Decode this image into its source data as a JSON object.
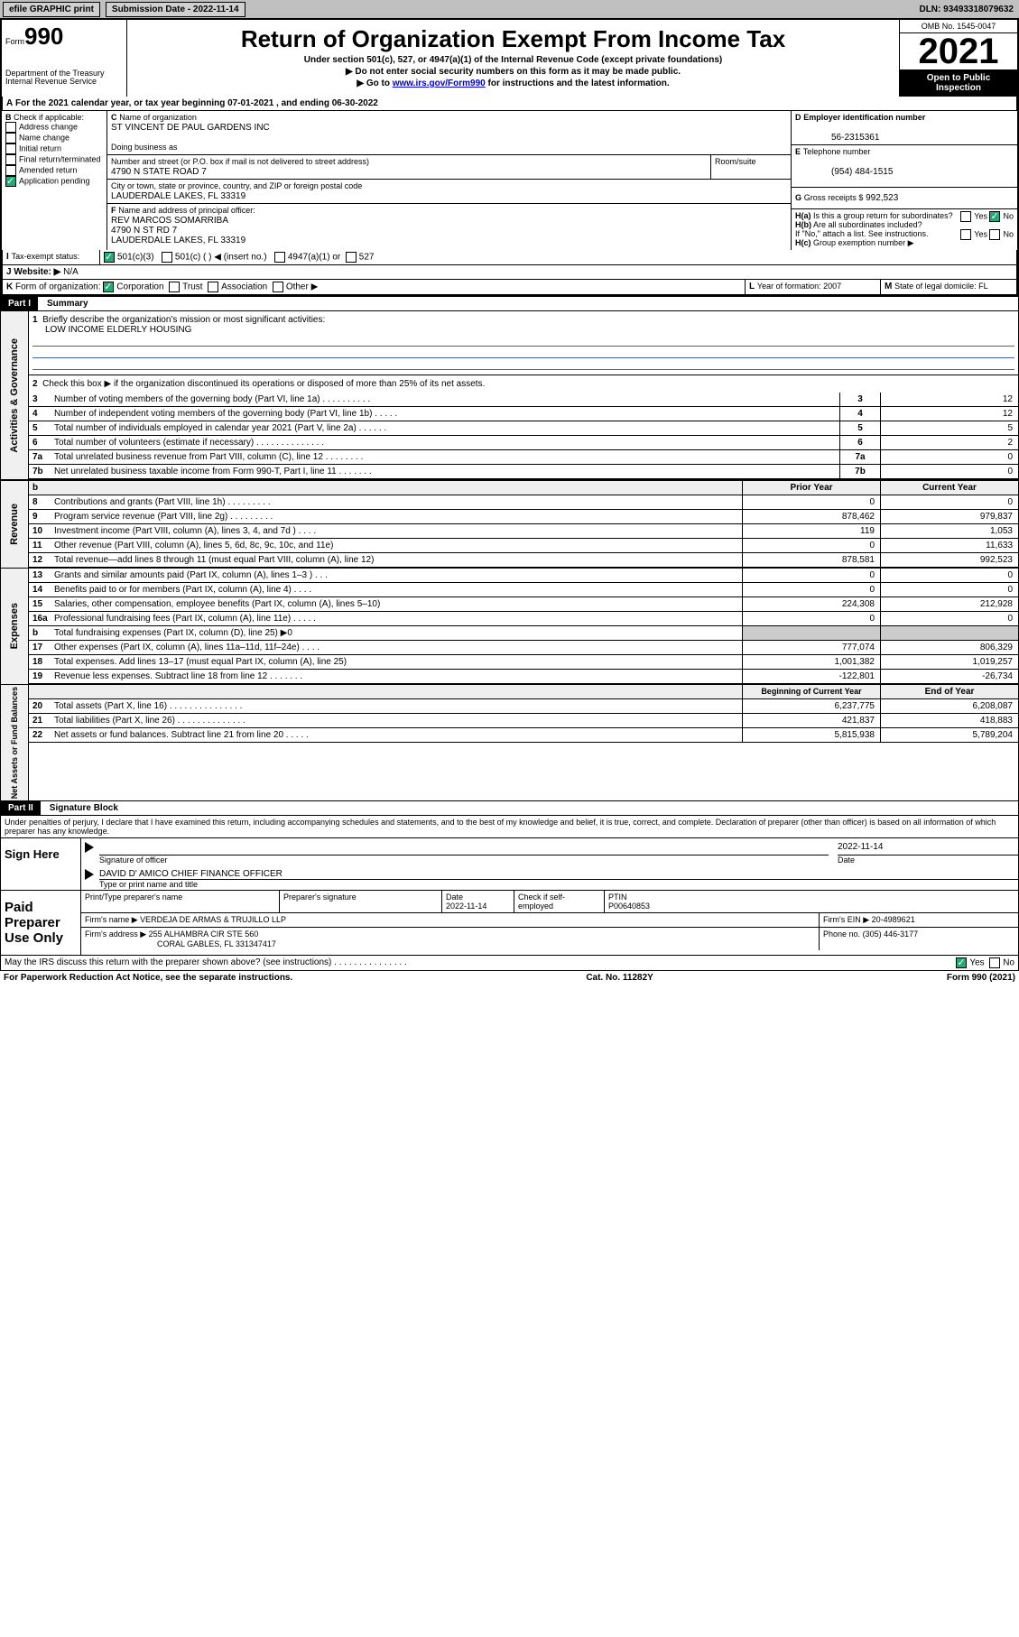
{
  "topbar": {
    "efile": "efile GRAPHIC print",
    "subdate_label": "Submission Date - 2022-11-14",
    "dln": "DLN: 93493318079632"
  },
  "hdr": {
    "form": "Form",
    "num": "990",
    "dept": "Department of the Treasury",
    "irs": "Internal Revenue Service",
    "title": "Return of Organization Exempt From Income Tax",
    "sub": "Under section 501(c), 527, or 4947(a)(1) of the Internal Revenue Code (except private foundations)",
    "note1": "▶ Do not enter social security numbers on this form as it may be made public.",
    "note2": "▶ Go to",
    "link": "www.irs.gov/Form990",
    "note2b": "for instructions and the latest information.",
    "omb": "OMB No. 1545-0047",
    "year": "2021",
    "open": "Open to Public",
    "insp": "Inspection"
  },
  "sectionA": {
    "taxyear": "For the 2021 calendar year, or tax year beginning 07-01-2021   , and ending 06-30-2022",
    "checkB": "Check if applicable:",
    "addr": "Address change",
    "namec": "Name change",
    "initial": "Initial return",
    "final": "Final return/terminated",
    "amended": "Amended return",
    "app": "Application pending",
    "cName": "Name of organization",
    "orgname": "ST VINCENT DE PAUL GARDENS INC",
    "dba": "Doing business as",
    "street_label": "Number and street (or P.O. box if mail is not delivered to street address)",
    "street": "4790 N STATE ROAD 7",
    "suite": "Room/suite",
    "city_label": "City or town, state or province, country, and ZIP or foreign postal code",
    "city": "LAUDERDALE LAKES, FL  33319",
    "officer_label": "Name and address of principal officer:",
    "officer": "REV MARCOS SOMARRIBA",
    "officer2": "4790 N ST RD 7",
    "officer3": "LAUDERDALE LAKES, FL  33319",
    "ein_label": "Employer identification number",
    "ein": "56-2315361",
    "tel_label": "Telephone number",
    "tel": "(954) 484-1515",
    "gross_label": "Gross receipts $",
    "gross": "992,523",
    "ha": "Is this a group return for subordinates?",
    "hb": "Are all subordinates included?",
    "hnote": "If \"No,\" attach a list. See instructions.",
    "hc": "Group exemption number ▶",
    "yes": "Yes",
    "no": "No",
    "taxexempt": "Tax-exempt status:",
    "s501c3": "501(c)(3)",
    "s501c": "501(c) (  ) ◀ (insert no.)",
    "s4947": "4947(a)(1) or",
    "s527": "527",
    "website": "Website: ▶",
    "website_val": "N/A",
    "korg": "Form of organization:",
    "corp": "Corporation",
    "trust": "Trust",
    "assoc": "Association",
    "other": "Other ▶",
    "yof": "Year of formation: 2007",
    "domicile": "State of legal domicile: FL"
  },
  "part1": {
    "title": "Part I",
    "subtitle": "Summary",
    "q1": "Briefly describe the organization's mission or most significant activities:",
    "q1val": "LOW INCOME ELDERLY HOUSING",
    "q2": "Check this box ▶        if the organization discontinued its operations or disposed of more than 25% of its net assets.",
    "lines": {
      "3": "Number of voting members of the governing body (Part VI, line 1a)   .   .   .   .   .   .   .   .   .   .",
      "4": "Number of independent voting members of the governing body (Part VI, line 1b)   .   .   .   .   .",
      "5": "Total number of individuals employed in calendar year 2021 (Part V, line 2a)   .   .   .   .   .   .",
      "6": "Total number of volunteers (estimate if necessary)   .   .   .   .   .   .   .   .   .   .   .   .   .   .",
      "7a": "Total unrelated business revenue from Part VIII, column (C), line 12   .   .   .   .   .   .   .   .",
      "7b": "Net unrelated business taxable income from Form 990-T, Part I, line 11   .   .   .   .   .   .   ."
    },
    "vals": {
      "3": "12",
      "4": "12",
      "5": "5",
      "6": "2",
      "7a": "0",
      "7b": "0"
    },
    "priorY": "Prior Year",
    "currY": "Current Year",
    "revenue": {
      "8": {
        "t": "Contributions and grants (Part VIII, line 1h)   .   .   .   .   .   .   .   .   .",
        "p": "0",
        "c": "0"
      },
      "9": {
        "t": "Program service revenue (Part VIII, line 2g)   .   .   .   .   .   .   .   .   .",
        "p": "878,462",
        "c": "979,837"
      },
      "10": {
        "t": "Investment income (Part VIII, column (A), lines 3, 4, and 7d )   .   .   .   .",
        "p": "119",
        "c": "1,053"
      },
      "11": {
        "t": "Other revenue (Part VIII, column (A), lines 5, 6d, 8c, 9c, 10c, and 11e)",
        "p": "0",
        "c": "11,633"
      },
      "12": {
        "t": "Total revenue—add lines 8 through 11 (must equal Part VIII, column (A), line 12)",
        "p": "878,581",
        "c": "992,523"
      }
    },
    "expenses": {
      "13": {
        "t": "Grants and similar amounts paid (Part IX, column (A), lines 1–3 )   .   .   .",
        "p": "0",
        "c": "0"
      },
      "14": {
        "t": "Benefits paid to or for members (Part IX, column (A), line 4)   .   .   .   .",
        "p": "0",
        "c": "0"
      },
      "15": {
        "t": "Salaries, other compensation, employee benefits (Part IX, column (A), lines 5–10)",
        "p": "224,308",
        "c": "212,928"
      },
      "16a": {
        "t": "Professional fundraising fees (Part IX, column (A), line 11e)   .   .   .   .   .",
        "p": "0",
        "c": "0"
      },
      "b": {
        "t": "Total fundraising expenses (Part IX, column (D), line 25) ▶0",
        "p": "",
        "c": ""
      },
      "17": {
        "t": "Other expenses (Part IX, column (A), lines 11a–11d, 11f–24e)   .   .   .   .",
        "p": "777,074",
        "c": "806,329"
      },
      "18": {
        "t": "Total expenses. Add lines 13–17 (must equal Part IX, column (A), line 25)",
        "p": "1,001,382",
        "c": "1,019,257"
      },
      "19": {
        "t": "Revenue less expenses. Subtract line 18 from line 12   .   .   .   .   .   .   .",
        "p": "-122,801",
        "c": "-26,734"
      }
    },
    "begY": "Beginning of Current Year",
    "endY": "End of Year",
    "assets": {
      "20": {
        "t": "Total assets (Part X, line 16)   .   .   .   .   .   .   .   .   .   .   .   .   .   .   .",
        "p": "6,237,775",
        "c": "6,208,087"
      },
      "21": {
        "t": "Total liabilities (Part X, line 26)   .   .   .   .   .   .   .   .   .   .   .   .   .   .",
        "p": "421,837",
        "c": "418,883"
      },
      "22": {
        "t": "Net assets or fund balances. Subtract line 21 from line 20   .   .   .   .   .",
        "p": "5,815,938",
        "c": "5,789,204"
      }
    },
    "side": {
      "gov": "Activities & Governance",
      "rev": "Revenue",
      "exp": "Expenses",
      "na": "Net Assets or Fund Balances"
    }
  },
  "part2": {
    "title": "Part II",
    "subtitle": "Signature Block",
    "penalties": "Under penalties of perjury, I declare that I have examined this return, including accompanying schedules and statements, and to the best of my knowledge and belief, it is true, correct, and complete. Declaration of preparer (other than officer) is based on all information of which preparer has any knowledge.",
    "sign_here": "Sign Here",
    "sig_officer": "Signature of officer",
    "sig_date": "Date",
    "sigdate": "2022-11-14",
    "sig_name": "DAVID D' AMICO  CHIEF FINANCE OFFICER",
    "sig_name_label": "Type or print name and title",
    "paid": "Paid Preparer Use Only",
    "prep_name": "Print/Type preparer's name",
    "prep_sig": "Preparer's signature",
    "prep_date": "Date",
    "prep_dateval": "2022-11-14",
    "check_self": "Check        if self-employed",
    "ptin": "PTIN",
    "ptinval": "P00640853",
    "firm_name": "Firm's name    ▶",
    "firmval": "VERDEJA DE ARMAS & TRUJILLO LLP",
    "firm_ein": "Firm's EIN ▶",
    "firmein": "20-4989621",
    "firm_addr": "Firm's address ▶",
    "addrval": "255 ALHAMBRA CIR STE 560",
    "addrval2": "CORAL GABLES, FL  331347417",
    "phone": "Phone no.",
    "phoneval": "(305) 446-3177",
    "may": "May the IRS discuss this return with the preparer shown above? (see instructions)   .   .   .   .   .   .   .   .   .   .   .   .   .   .   .",
    "paperwork": "For Paperwork Reduction Act Notice, see the separate instructions.",
    "cat": "Cat. No. 11282Y",
    "formno": "Form 990 (2021)"
  }
}
